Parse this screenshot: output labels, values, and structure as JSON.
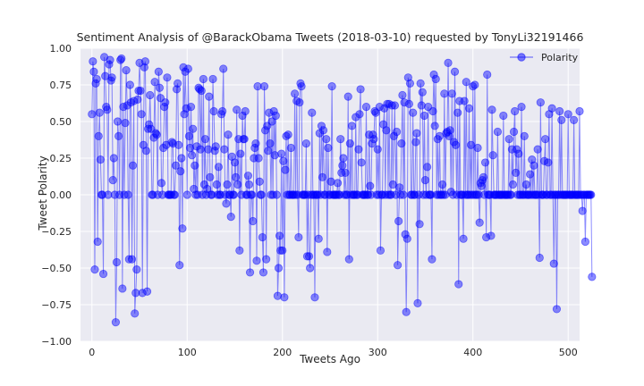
{
  "chart_data": {
    "type": "line",
    "title": "Sentiment Analysis of @BarackObama Tweets (2018-03-10) requested by TonyLi32191466",
    "xlabel": "Tweets Ago",
    "ylabel": "Tweet Polarity",
    "xlim": [
      -12,
      512
    ],
    "ylim": [
      -1.0,
      1.0
    ],
    "xticks": [
      0,
      100,
      200,
      300,
      400,
      500
    ],
    "xtick_labels": [
      "0",
      "100",
      "200",
      "300",
      "400",
      "500"
    ],
    "yticks": [
      -1.0,
      -0.75,
      -0.5,
      -0.25,
      0.0,
      0.25,
      0.5,
      0.75,
      1.0
    ],
    "ytick_labels": [
      "−1.00",
      "−0.75",
      "−0.50",
      "−0.25",
      "0.00",
      "0.25",
      "0.50",
      "0.75",
      "1.00"
    ],
    "grid": true,
    "legend_position": "top-right",
    "marker": "circle",
    "series": [
      {
        "name": "Polarity",
        "color": "#0000ff",
        "x_start": 0,
        "x_step": 1,
        "y": [
          0.55,
          0.91,
          0.84,
          -0.51,
          0.76,
          0.79,
          -0.32,
          0.4,
          0.56,
          0.24,
          0.0,
          0.0,
          -0.54,
          0.94,
          0.81,
          0.6,
          0.58,
          0.0,
          0.89,
          0.92,
          0.78,
          0.8,
          0.1,
          0.25,
          0.0,
          -0.87,
          -0.46,
          0.5,
          0.4,
          0.0,
          0.92,
          0.93,
          -0.64,
          0.6,
          0.0,
          0.49,
          0.85,
          0.61,
          0.0,
          -0.44,
          0.75,
          0.63,
          -0.44,
          0.2,
          0.64,
          -0.81,
          -0.67,
          -0.51,
          0.65,
          0.71,
          0.9,
          0.71,
          0.55,
          -0.67,
          0.34,
          0.87,
          0.91,
          0.3,
          -0.66,
          0.45,
          0.48,
          0.68,
          0.45,
          0.0,
          0.0,
          0.39,
          0.77,
          0.42,
          0.41,
          0.0,
          0.84,
          0.73,
          0.66,
          0.08,
          0.0,
          0.32,
          0.6,
          0.63,
          0.34,
          0.8,
          0.0,
          0.0,
          0.0,
          0.0,
          0.36,
          0.35,
          0.0,
          0.0,
          0.2,
          0.72,
          0.76,
          0.34,
          -0.48,
          0.16,
          0.25,
          -0.23,
          0.87,
          0.55,
          0.84,
          0.59,
          0.0,
          0.86,
          0.4,
          0.32,
          0.6,
          0.27,
          0.45,
          0.04,
          0.2,
          0.0,
          0.33,
          0.0,
          0.73,
          0.72,
          0.31,
          0.71,
          0.0,
          0.79,
          0.07,
          0.38,
          0.0,
          0.04,
          0.31,
          0.67,
          0.12,
          0.0,
          0.0,
          0.79,
          0.57,
          0.3,
          0.33,
          0.07,
          0.0,
          0.19,
          0.0,
          0.0,
          0.55,
          0.57,
          0.86,
          0.31,
          0.0,
          -0.06,
          0.07,
          0.41,
          0.0,
          0.0,
          -0.15,
          0.26,
          0.0,
          0.0,
          0.22,
          0.12,
          0.58,
          0.07,
          0.38,
          -0.38,
          0.28,
          0.0,
          0.54,
          0.38,
          0.38,
          0.57,
          0.0,
          0.0,
          0.13,
          0.07,
          -0.53,
          0.0,
          0.0,
          -0.18,
          0.25,
          0.32,
          0.35,
          -0.45,
          0.74,
          0.25,
          0.09,
          0.0,
          0.0,
          -0.29,
          -0.53,
          0.74,
          0.44,
          -0.44,
          0.47,
          0.3,
          0.56,
          0.35,
          0.0,
          0.5,
          0.0,
          0.57,
          0.27,
          0.54,
          0.0,
          -0.69,
          -0.5,
          -0.28,
          -0.38,
          0.28,
          -0.38,
          0.23,
          -0.7,
          0.17,
          0.4,
          0.0,
          0.41,
          0.0,
          0.0,
          0.32,
          0.0,
          0.0,
          0.0,
          0.69,
          0.0,
          0.64,
          0.0,
          -0.29,
          0.63,
          0.76,
          0.74,
          0.0,
          0.0,
          0.0,
          0.0,
          0.35,
          -0.42,
          0.0,
          -0.42,
          -0.5,
          0.0,
          0.56,
          0.0,
          0.0,
          -0.7,
          0.0,
          0.0,
          0.0,
          -0.3,
          0.42,
          0.0,
          0.47,
          0.12,
          0.44,
          0.0,
          0.0,
          0.38,
          -0.39,
          0.32,
          0.0,
          0.0,
          0.09,
          0.74,
          0.0,
          0.0,
          0.0,
          0.0,
          0.0,
          0.08,
          0.0,
          0.0,
          0.38,
          0.15,
          0.2,
          0.25,
          0.0,
          0.15,
          0.0,
          0.0,
          0.67,
          -0.44,
          0.35,
          0.0,
          0.47,
          0.0,
          0.0,
          0.0,
          0.53,
          0.0,
          0.0,
          0.31,
          0.55,
          0.72,
          0.22,
          0.0,
          0.0,
          0.0,
          0.0,
          0.6,
          0.0,
          0.0,
          0.41,
          0.06,
          0.0,
          0.35,
          0.41,
          0.38,
          0.57,
          0.56,
          0.0,
          0.31,
          0.0,
          0.6,
          -0.38,
          0.0,
          0.0,
          0.48,
          0.59,
          0.0,
          0.44,
          0.62,
          0.0,
          0.62,
          0.0,
          0.0,
          0.61,
          0.07,
          0.4,
          0.61,
          0.0,
          0.43,
          -0.48,
          -0.18,
          0.05,
          0.0,
          0.35,
          0.68,
          0.0,
          0.63,
          -0.27,
          -0.8,
          -0.3,
          0.8,
          0.62,
          0.76,
          0.0,
          0.0,
          0.56,
          0.0,
          0.0,
          0.36,
          0.42,
          -0.74,
          0.0,
          -0.2,
          0.76,
          0.61,
          0.7,
          0.0,
          0.54,
          0.1,
          0.0,
          0.19,
          0.6,
          0.0,
          0.0,
          0.0,
          -0.44,
          0.57,
          0.82,
          0.47,
          0.79,
          0.0,
          0.38,
          0.0,
          0.4,
          0.0,
          0.0,
          0.07,
          0.0,
          0.69,
          0.0,
          0.42,
          0.43,
          0.9,
          0.4,
          0.44,
          0.02,
          0.69,
          0.0,
          0.36,
          0.84,
          0.34,
          0.0,
          0.56,
          -0.61,
          0.64,
          0.0,
          0.0,
          0.0,
          -0.3,
          0.64,
          0.0,
          0.77,
          0.0,
          0.0,
          0.59,
          0.0,
          0.34,
          0.0,
          0.74,
          0.0,
          0.75,
          0.0,
          0.0,
          0.32,
          0.0,
          -0.19,
          0.08,
          0.06,
          0.1,
          0.12,
          0.0,
          0.22,
          -0.29,
          0.82,
          0.0,
          0.0,
          0.0,
          -0.28,
          0.58,
          0.27,
          0.0,
          0.0,
          0.0,
          0.0,
          0.43,
          0.0,
          0.0,
          0.0,
          0.0,
          0.0,
          0.54,
          0.0,
          0.0,
          0.0,
          0.0,
          0.0,
          0.38,
          0.0,
          0.0,
          0.31,
          0.07,
          0.43,
          0.57,
          0.15,
          0.31,
          0.0,
          0.28,
          0.0,
          0.0,
          0.6,
          0.0,
          0.0,
          0.4,
          0.0,
          0.07,
          0.0,
          0.0,
          0.0,
          0.14,
          0.0,
          0.24,
          0.0,
          0.2,
          0.0,
          0.0,
          0.0,
          0.31,
          0.0,
          -0.43,
          0.63,
          0.0,
          0.0,
          0.0,
          0.23,
          0.38,
          0.0,
          0.0,
          0.22,
          0.55,
          0.0,
          0.0,
          0.59,
          0.0,
          -0.47,
          0.0,
          0.0,
          -0.78,
          0.0,
          0.0,
          0.57,
          0.0,
          0.51,
          0.0,
          0.0,
          0.0,
          0.0,
          0.0,
          0.0,
          0.55,
          0.0,
          0.0,
          0.0,
          0.0,
          0.0,
          0.51,
          0.0,
          0.0,
          0.0,
          0.0,
          0.0,
          0.57,
          0.0,
          0.0,
          -0.11,
          0.0,
          0.0,
          -0.32,
          0.0,
          0.0,
          0.0,
          0.0,
          0.0,
          0.0,
          -0.56
        ]
      }
    ]
  }
}
